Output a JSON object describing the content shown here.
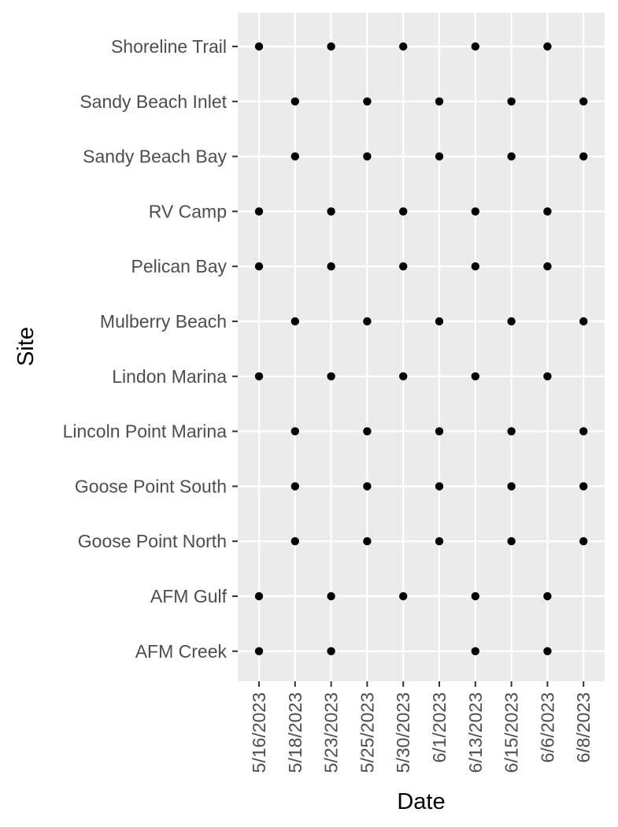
{
  "chart_data": {
    "type": "scatter",
    "xlabel": "Date",
    "ylabel": "Site",
    "x_categories": [
      "5/16/2023",
      "5/18/2023",
      "5/23/2023",
      "5/25/2023",
      "5/30/2023",
      "6/1/2023",
      "6/13/2023",
      "6/15/2023",
      "6/6/2023",
      "6/8/2023"
    ],
    "y_categories": [
      "AFM Creek",
      "AFM Gulf",
      "Goose Point North",
      "Goose Point South",
      "Lincoln Point Marina",
      "Lindon Marina",
      "Mulberry Beach",
      "Pelican Bay",
      "RV Camp",
      "Sandy Beach Bay",
      "Sandy Beach Inlet",
      "Shoreline Trail"
    ],
    "points": [
      {
        "x": "5/16/2023",
        "y": "Shoreline Trail"
      },
      {
        "x": "5/23/2023",
        "y": "Shoreline Trail"
      },
      {
        "x": "5/30/2023",
        "y": "Shoreline Trail"
      },
      {
        "x": "6/13/2023",
        "y": "Shoreline Trail"
      },
      {
        "x": "6/6/2023",
        "y": "Shoreline Trail"
      },
      {
        "x": "5/18/2023",
        "y": "Sandy Beach Inlet"
      },
      {
        "x": "5/25/2023",
        "y": "Sandy Beach Inlet"
      },
      {
        "x": "6/1/2023",
        "y": "Sandy Beach Inlet"
      },
      {
        "x": "6/15/2023",
        "y": "Sandy Beach Inlet"
      },
      {
        "x": "6/8/2023",
        "y": "Sandy Beach Inlet"
      },
      {
        "x": "5/18/2023",
        "y": "Sandy Beach Bay"
      },
      {
        "x": "5/25/2023",
        "y": "Sandy Beach Bay"
      },
      {
        "x": "6/1/2023",
        "y": "Sandy Beach Bay"
      },
      {
        "x": "6/15/2023",
        "y": "Sandy Beach Bay"
      },
      {
        "x": "6/8/2023",
        "y": "Sandy Beach Bay"
      },
      {
        "x": "5/16/2023",
        "y": "RV Camp"
      },
      {
        "x": "5/23/2023",
        "y": "RV Camp"
      },
      {
        "x": "5/30/2023",
        "y": "RV Camp"
      },
      {
        "x": "6/13/2023",
        "y": "RV Camp"
      },
      {
        "x": "6/6/2023",
        "y": "RV Camp"
      },
      {
        "x": "5/16/2023",
        "y": "Pelican Bay"
      },
      {
        "x": "5/23/2023",
        "y": "Pelican Bay"
      },
      {
        "x": "5/30/2023",
        "y": "Pelican Bay"
      },
      {
        "x": "6/13/2023",
        "y": "Pelican Bay"
      },
      {
        "x": "6/6/2023",
        "y": "Pelican Bay"
      },
      {
        "x": "5/18/2023",
        "y": "Mulberry Beach"
      },
      {
        "x": "5/25/2023",
        "y": "Mulberry Beach"
      },
      {
        "x": "6/1/2023",
        "y": "Mulberry Beach"
      },
      {
        "x": "6/15/2023",
        "y": "Mulberry Beach"
      },
      {
        "x": "6/8/2023",
        "y": "Mulberry Beach"
      },
      {
        "x": "5/16/2023",
        "y": "Lindon Marina"
      },
      {
        "x": "5/23/2023",
        "y": "Lindon Marina"
      },
      {
        "x": "5/30/2023",
        "y": "Lindon Marina"
      },
      {
        "x": "6/13/2023",
        "y": "Lindon Marina"
      },
      {
        "x": "6/6/2023",
        "y": "Lindon Marina"
      },
      {
        "x": "5/18/2023",
        "y": "Lincoln Point Marina"
      },
      {
        "x": "5/25/2023",
        "y": "Lincoln Point Marina"
      },
      {
        "x": "6/1/2023",
        "y": "Lincoln Point Marina"
      },
      {
        "x": "6/15/2023",
        "y": "Lincoln Point Marina"
      },
      {
        "x": "6/8/2023",
        "y": "Lincoln Point Marina"
      },
      {
        "x": "5/18/2023",
        "y": "Goose Point South"
      },
      {
        "x": "5/25/2023",
        "y": "Goose Point South"
      },
      {
        "x": "6/1/2023",
        "y": "Goose Point South"
      },
      {
        "x": "6/15/2023",
        "y": "Goose Point South"
      },
      {
        "x": "6/8/2023",
        "y": "Goose Point South"
      },
      {
        "x": "5/18/2023",
        "y": "Goose Point North"
      },
      {
        "x": "5/25/2023",
        "y": "Goose Point North"
      },
      {
        "x": "6/1/2023",
        "y": "Goose Point North"
      },
      {
        "x": "6/15/2023",
        "y": "Goose Point North"
      },
      {
        "x": "6/8/2023",
        "y": "Goose Point North"
      },
      {
        "x": "5/16/2023",
        "y": "AFM Gulf"
      },
      {
        "x": "5/23/2023",
        "y": "AFM Gulf"
      },
      {
        "x": "5/30/2023",
        "y": "AFM Gulf"
      },
      {
        "x": "6/13/2023",
        "y": "AFM Gulf"
      },
      {
        "x": "6/6/2023",
        "y": "AFM Gulf"
      },
      {
        "x": "5/16/2023",
        "y": "AFM Creek"
      },
      {
        "x": "5/23/2023",
        "y": "AFM Creek"
      },
      {
        "x": "6/13/2023",
        "y": "AFM Creek"
      },
      {
        "x": "6/6/2023",
        "y": "AFM Creek"
      }
    ],
    "grid": true,
    "legend": "none",
    "colors": {
      "panel_background": "#ebebeb",
      "grid": "#ffffff",
      "point": "#000000",
      "tick_text": "#4d4d4d",
      "tick_mark": "#333333",
      "title_text": "#000000"
    }
  }
}
